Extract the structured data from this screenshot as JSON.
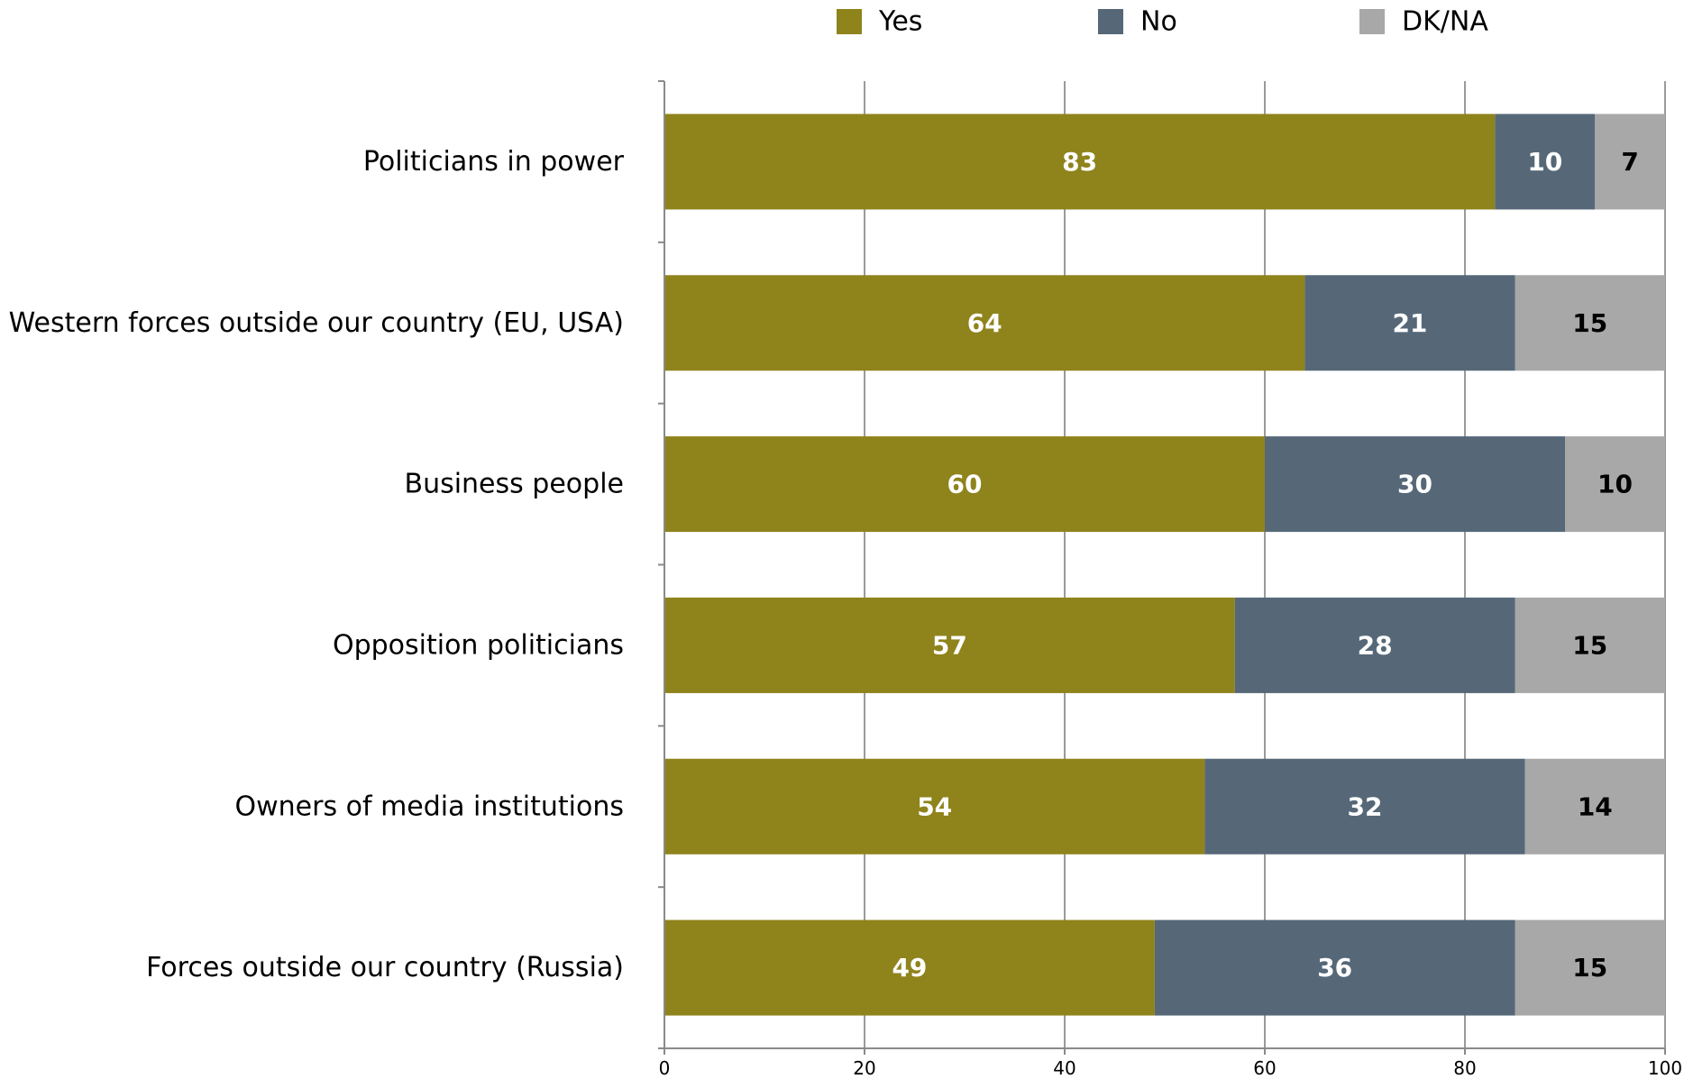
{
  "chart_data": {
    "type": "bar",
    "orientation": "horizontal",
    "stacked": true,
    "categories": [
      "Politicians in power",
      "Western forces outside our country (EU, USA)",
      "Business people",
      "Opposition politicians",
      "Owners of media institutions",
      "Forces outside our country (Russia)"
    ],
    "series": [
      {
        "name": "Yes",
        "color": "#8f831c",
        "label_color": "#ffffff",
        "values": [
          83,
          64,
          60,
          57,
          54,
          49
        ]
      },
      {
        "name": "No",
        "color": "#566878",
        "label_color": "#ffffff",
        "values": [
          10,
          21,
          30,
          28,
          32,
          36
        ]
      },
      {
        "name": "DK/NA",
        "color": "#a8a8a8",
        "label_color": "#000000",
        "values": [
          7,
          15,
          10,
          15,
          14,
          15
        ]
      }
    ],
    "xlim": [
      0,
      100
    ],
    "xticks": [
      0,
      20,
      40,
      60,
      80,
      100
    ],
    "grid": true,
    "legend_position": "top",
    "title": "",
    "xlabel": "",
    "ylabel": ""
  }
}
